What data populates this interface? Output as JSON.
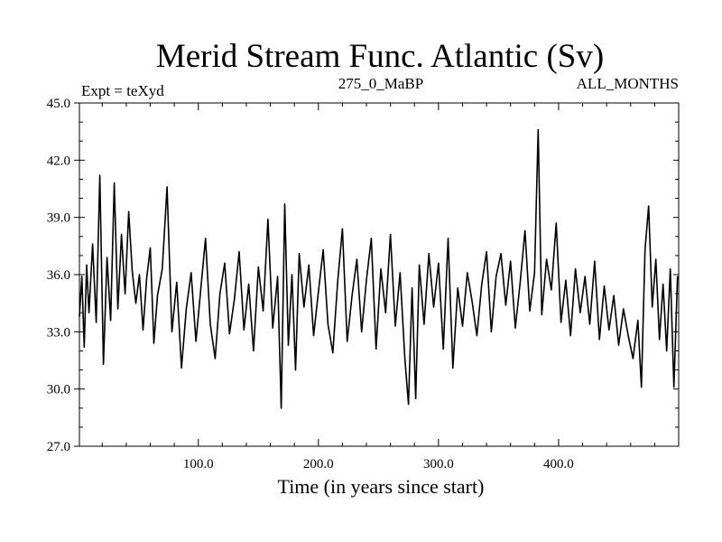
{
  "chart_data": {
    "type": "line",
    "title": "Merid Stream Func. Atlantic (Sv)",
    "subtitle_left": "Expt = teXyd",
    "subtitle_center": "275_0_MaBP",
    "subtitle_right": "ALL_MONTHS",
    "xlabel": "Time (in years since start)",
    "ylabel": "",
    "xlim": [
      1,
      500
    ],
    "ylim": [
      27.0,
      45.0
    ],
    "x_ticks": [
      {
        "value": 100,
        "label": "100.0"
      },
      {
        "value": 200,
        "label": "200.0"
      },
      {
        "value": 300,
        "label": "300.0"
      },
      {
        "value": 400,
        "label": "400.0"
      }
    ],
    "y_ticks": [
      {
        "value": 27.0,
        "label": "27.0"
      },
      {
        "value": 30.0,
        "label": "30.0"
      },
      {
        "value": 33.0,
        "label": "33.0"
      },
      {
        "value": 36.0,
        "label": "36.0"
      },
      {
        "value": 39.0,
        "label": "39.0"
      },
      {
        "value": 42.0,
        "label": "42.0"
      },
      {
        "value": 45.0,
        "label": "45.0"
      }
    ],
    "grid": false,
    "series": [
      {
        "color": "#000000",
        "x": [
          1,
          3,
          5,
          7,
          9,
          12,
          15,
          18,
          21,
          24,
          27,
          30,
          33,
          36,
          39,
          42,
          45,
          48,
          51,
          54,
          57,
          60,
          63,
          66,
          70,
          74,
          78,
          82,
          86,
          90,
          94,
          98,
          102,
          106,
          110,
          114,
          118,
          122,
          126,
          130,
          134,
          138,
          142,
          146,
          150,
          154,
          158,
          162,
          166,
          169,
          172,
          175,
          178,
          181,
          184,
          188,
          192,
          196,
          200,
          204,
          208,
          212,
          216,
          220,
          224,
          228,
          232,
          236,
          240,
          244,
          248,
          252,
          256,
          260,
          264,
          268,
          272,
          275,
          278,
          281,
          284,
          288,
          292,
          296,
          300,
          304,
          308,
          312,
          316,
          320,
          324,
          328,
          332,
          336,
          340,
          344,
          348,
          352,
          356,
          360,
          364,
          368,
          372,
          376,
          380,
          383,
          386,
          390,
          394,
          398,
          402,
          406,
          410,
          414,
          418,
          422,
          426,
          430,
          434,
          438,
          442,
          446,
          450,
          454,
          458,
          462,
          466,
          469,
          472,
          475,
          478,
          481,
          484,
          487,
          490,
          493,
          496,
          499
        ],
        "values": [
          33.8,
          35.9,
          32.2,
          36.5,
          34.0,
          37.6,
          33.5,
          41.2,
          31.3,
          36.9,
          33.6,
          40.8,
          34.2,
          38.1,
          35.0,
          39.3,
          36.2,
          34.5,
          36.0,
          33.1,
          35.8,
          37.4,
          32.4,
          34.9,
          36.3,
          40.6,
          33.0,
          35.6,
          31.1,
          34.2,
          36.1,
          32.5,
          35.2,
          37.9,
          33.4,
          31.6,
          35.0,
          36.6,
          32.9,
          34.7,
          37.2,
          33.1,
          35.5,
          32.0,
          36.4,
          34.1,
          38.9,
          33.2,
          35.9,
          29.0,
          39.7,
          32.3,
          36.0,
          31.0,
          37.1,
          34.3,
          36.5,
          32.8,
          35.1,
          37.3,
          33.4,
          31.9,
          35.6,
          38.4,
          32.5,
          34.9,
          36.8,
          33.0,
          35.7,
          37.9,
          32.1,
          36.3,
          34.0,
          38.1,
          33.3,
          36.1,
          31.6,
          29.2,
          35.3,
          29.5,
          36.5,
          33.4,
          37.1,
          34.3,
          36.6,
          32.1,
          37.9,
          31.1,
          35.3,
          33.3,
          36.1,
          34.6,
          32.8,
          35.5,
          37.2,
          33.0,
          35.9,
          37.1,
          34.4,
          36.7,
          33.2,
          35.6,
          38.3,
          34.1,
          36.1,
          43.6,
          33.9,
          36.8,
          35.2,
          38.7,
          33.5,
          35.7,
          32.8,
          36.3,
          34.0,
          35.9,
          33.4,
          36.7,
          32.6,
          35.4,
          33.1,
          34.9,
          32.3,
          34.2,
          32.8,
          31.6,
          33.6,
          30.1,
          37.3,
          39.6,
          34.3,
          36.8,
          32.6,
          35.5,
          32.0,
          36.3,
          30.1,
          35.9
        ]
      }
    ]
  }
}
